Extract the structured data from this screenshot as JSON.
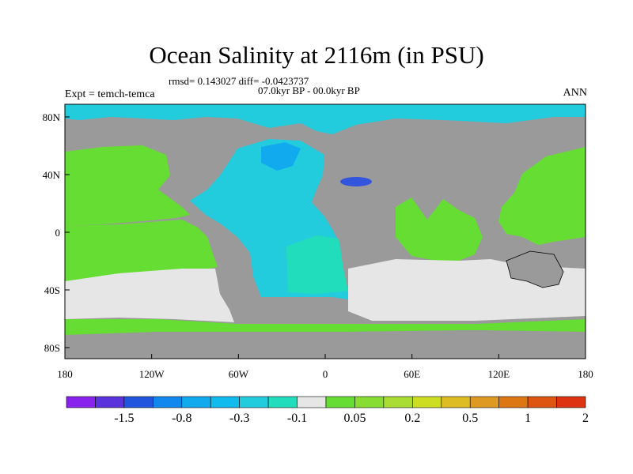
{
  "title": "Ocean Salinity at 2116m (in PSU)",
  "stats": "rmsd= 0.143027 diff= -0.0423737",
  "period": "07.0kyr BP - 00.0kyr BP",
  "experiment": "Expt = temch-temca",
  "season": "ANN",
  "axes": {
    "x_ticks": [
      "180",
      "120W",
      "60W",
      "0",
      "60E",
      "120E",
      "180"
    ],
    "y_ticks": [
      "80N",
      "40N",
      "0",
      "40S",
      "80S"
    ]
  },
  "colors": {
    "land": "#9a9a9a",
    "near_zero": "#e6e6e6",
    "positive_low": "#66dd33",
    "negative_low": "#22ccdd",
    "negative_mid": "#11aaee",
    "deep_negative": "#3355dd",
    "teal": "#22ddbb"
  },
  "colorbar": {
    "labels": [
      "-1.5",
      "-0.8",
      "-0.3",
      "-0.1",
      "0.05",
      "0.2",
      "0.5",
      "1",
      "2"
    ],
    "colors": [
      "#8a22ee",
      "#5a33dd",
      "#2255dd",
      "#1188ee",
      "#11aaee",
      "#11bbee",
      "#22ccdd",
      "#22ddbb",
      "#e6e6e6",
      "#66dd33",
      "#88dd33",
      "#aadd33",
      "#ccdd22",
      "#ddbb22",
      "#dd9922",
      "#dd7711",
      "#dd5511",
      "#dd3311"
    ]
  }
}
